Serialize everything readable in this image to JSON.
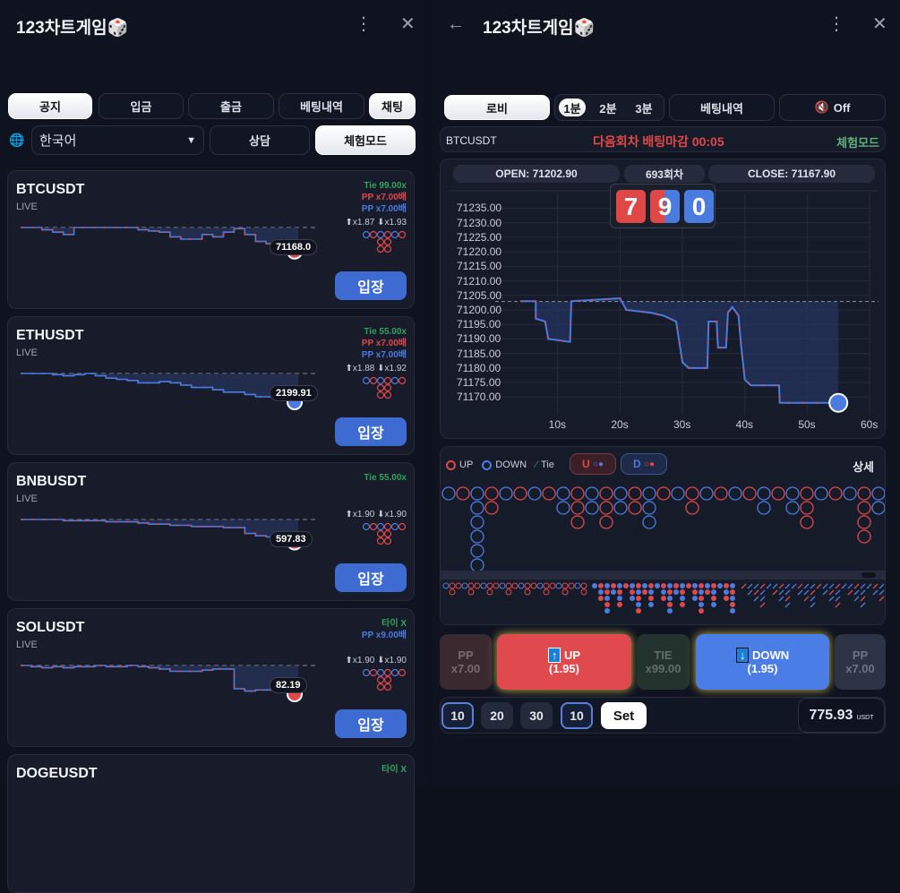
{
  "left": {
    "title": "123차트게임🎲",
    "tabs": [
      "공지",
      "입금",
      "출금",
      "베팅내역",
      "채팅"
    ],
    "language": "한국어",
    "consult_label": "상담",
    "trial_label": "체험모드",
    "cards": [
      {
        "symbol": "BTCUSDT",
        "status": "LIVE",
        "odds": [
          {
            "text": "Tie 99.00x",
            "color": "#2fa35a"
          },
          {
            "text": "PP x7.00배",
            "color": "#e04848"
          },
          {
            "text": "PP x7.00배",
            "color": "#4a7be0"
          }
        ],
        "updown": "⬆x1.87 ⬇x1.93",
        "price": "71168.0",
        "enter": "입장",
        "spark": [
          0,
          0,
          -2,
          -4,
          -6,
          0,
          0,
          0,
          0,
          0,
          0,
          -2,
          -3,
          -4,
          -8,
          -10,
          -10,
          -6,
          -8,
          -4,
          -1,
          -6,
          -12,
          -14,
          -16,
          -16,
          -16
        ],
        "dot": "#e04848"
      },
      {
        "symbol": "ETHUSDT",
        "status": "LIVE",
        "odds": [
          {
            "text": "Tie 55.00x",
            "color": "#2fa35a"
          },
          {
            "text": "PP x7.00배",
            "color": "#e04848"
          },
          {
            "text": "PP x7.00배",
            "color": "#4a7be0"
          }
        ],
        "updown": "⬆x1.88 ⬇x1.92",
        "price": "2199.91",
        "enter": "입장",
        "spark": [
          0,
          0,
          0,
          -1,
          -2,
          -1,
          0,
          -2,
          -4,
          -5,
          -6,
          -8,
          -8,
          -7,
          -8,
          -10,
          -12,
          -12,
          -14,
          -16,
          -16,
          -18,
          -20,
          -20,
          -20,
          -20,
          -20
        ],
        "dot": "#4a7be0"
      },
      {
        "symbol": "BNBUSDT",
        "status": "LIVE",
        "odds": [
          {
            "text": "Tie 55.00x",
            "color": "#2fa35a"
          }
        ],
        "updown": "⬆x1.90 ⬇x1.90",
        "price": "597.83",
        "enter": "입장",
        "spark": [
          0,
          0,
          0,
          0,
          -1,
          -1,
          -1,
          -1,
          -2,
          -2,
          -2,
          -3,
          -4,
          -4,
          -5,
          -5,
          -6,
          -6,
          -6,
          -7,
          -7,
          -12,
          -14,
          -15,
          -15,
          -15,
          -15
        ],
        "dot": "#e04848"
      },
      {
        "symbol": "SOLUSDT",
        "status": "LIVE",
        "odds": [
          {
            "text": "타이 X",
            "color": "#2fa35a"
          },
          {
            "text": "PP x9.00배",
            "color": "#4a7be0"
          }
        ],
        "updown": "⬆x1.90 ⬇x1.90",
        "price": "82.19",
        "enter": "입장",
        "spark": [
          0,
          -1,
          -2,
          -1,
          -2,
          -1,
          -1,
          0,
          -1,
          -1,
          0,
          -1,
          -2,
          -3,
          -5,
          -5,
          -5,
          -4,
          -3,
          -3,
          -20,
          -22,
          -21,
          -21,
          -21,
          -20,
          -20
        ],
        "dot": "#e04848"
      },
      {
        "symbol": "DOGEUSDT",
        "status": "",
        "odds": [
          {
            "text": "타이 X",
            "color": "#2fa35a"
          }
        ],
        "updown": "",
        "price": "",
        "enter": "",
        "spark": [],
        "dot": ""
      }
    ]
  },
  "right": {
    "title": "123차트게임🎲",
    "lobby": "로비",
    "intervals": [
      "1분",
      "2분",
      "3분"
    ],
    "selected_interval": "1분",
    "history": "베팅내역",
    "sound": "Off",
    "symbol": "BTCUSDT",
    "countdown": "다음회차 배팅마감 00:05",
    "mode": "체험모드",
    "open": "OPEN: 71202.90",
    "round": "693회차",
    "close": "CLOSE: 71167.90",
    "digits": [
      {
        "d": "7",
        "c": "red"
      },
      {
        "d": "9",
        "c": "split"
      },
      {
        "d": "0",
        "c": "blue"
      }
    ],
    "chart": {
      "type": "line",
      "yticks": [
        "71235.00",
        "71230.00",
        "71225.00",
        "71220.00",
        "71215.00",
        "71210.00",
        "71205.00",
        "71200.00",
        "71195.00",
        "71190.00",
        "71185.00",
        "71180.00",
        "71175.00",
        "71170.00"
      ],
      "xticks": [
        "10s",
        "20s",
        "30s",
        "40s",
        "50s",
        "60s"
      ],
      "ylim": [
        71167,
        71237
      ],
      "xlim": [
        0,
        60
      ],
      "open_price": 71202.9,
      "points": [
        [
          4,
          71203
        ],
        [
          6.5,
          71203
        ],
        [
          6.5,
          71197
        ],
        [
          8,
          71196
        ],
        [
          8.5,
          71190
        ],
        [
          12,
          71189
        ],
        [
          12.2,
          71203
        ],
        [
          20,
          71204
        ],
        [
          21,
          71200
        ],
        [
          25,
          71199
        ],
        [
          27,
          71198
        ],
        [
          29,
          71196
        ],
        [
          30,
          71182
        ],
        [
          31,
          71180
        ],
        [
          34,
          71180
        ],
        [
          34.2,
          71196
        ],
        [
          35.5,
          71196
        ],
        [
          35.7,
          71187
        ],
        [
          37,
          71187
        ],
        [
          37.3,
          71199
        ],
        [
          38,
          71201
        ],
        [
          39,
          71198
        ],
        [
          39.4,
          71188
        ],
        [
          40,
          71176
        ],
        [
          41,
          71174
        ],
        [
          45.5,
          71174
        ],
        [
          45.6,
          71168
        ],
        [
          55,
          71168
        ]
      ],
      "current": [
        55,
        71168
      ]
    },
    "legend": {
      "up": "UP",
      "down": "DOWN",
      "tie": "Tie",
      "u_btn": "U",
      "d_btn": "D",
      "detail": "상세"
    },
    "bigroad": [
      "B",
      "R",
      "BBBBBB",
      "RR",
      "B",
      "R",
      "B",
      "R",
      "BB",
      "RRR",
      "BB",
      "RRR",
      "BB",
      "RR",
      "BBB",
      "R",
      "B",
      "RR",
      "B",
      "R",
      "B",
      "R",
      "BB",
      "R",
      "BB",
      "RRR",
      "B",
      "R",
      "B",
      "RRRR",
      "BB",
      "RR",
      "B"
    ],
    "bets": {
      "pp_left": [
        "PP",
        "x7.00"
      ],
      "up": [
        "UP",
        "(1.95)"
      ],
      "tie": [
        "TIE",
        "x99.00"
      ],
      "down": [
        "DOWN",
        "(1.95)"
      ],
      "pp_right": [
        "PP",
        "x7.00"
      ]
    },
    "chips": [
      "10",
      "20",
      "30",
      "10"
    ],
    "set": "Set",
    "balance": "775.93",
    "currency": "USDT",
    "colors": {
      "up": "#e04848",
      "down": "#4a7be0",
      "tie": "#2fa35a",
      "accent": "#3d6bd1"
    }
  }
}
